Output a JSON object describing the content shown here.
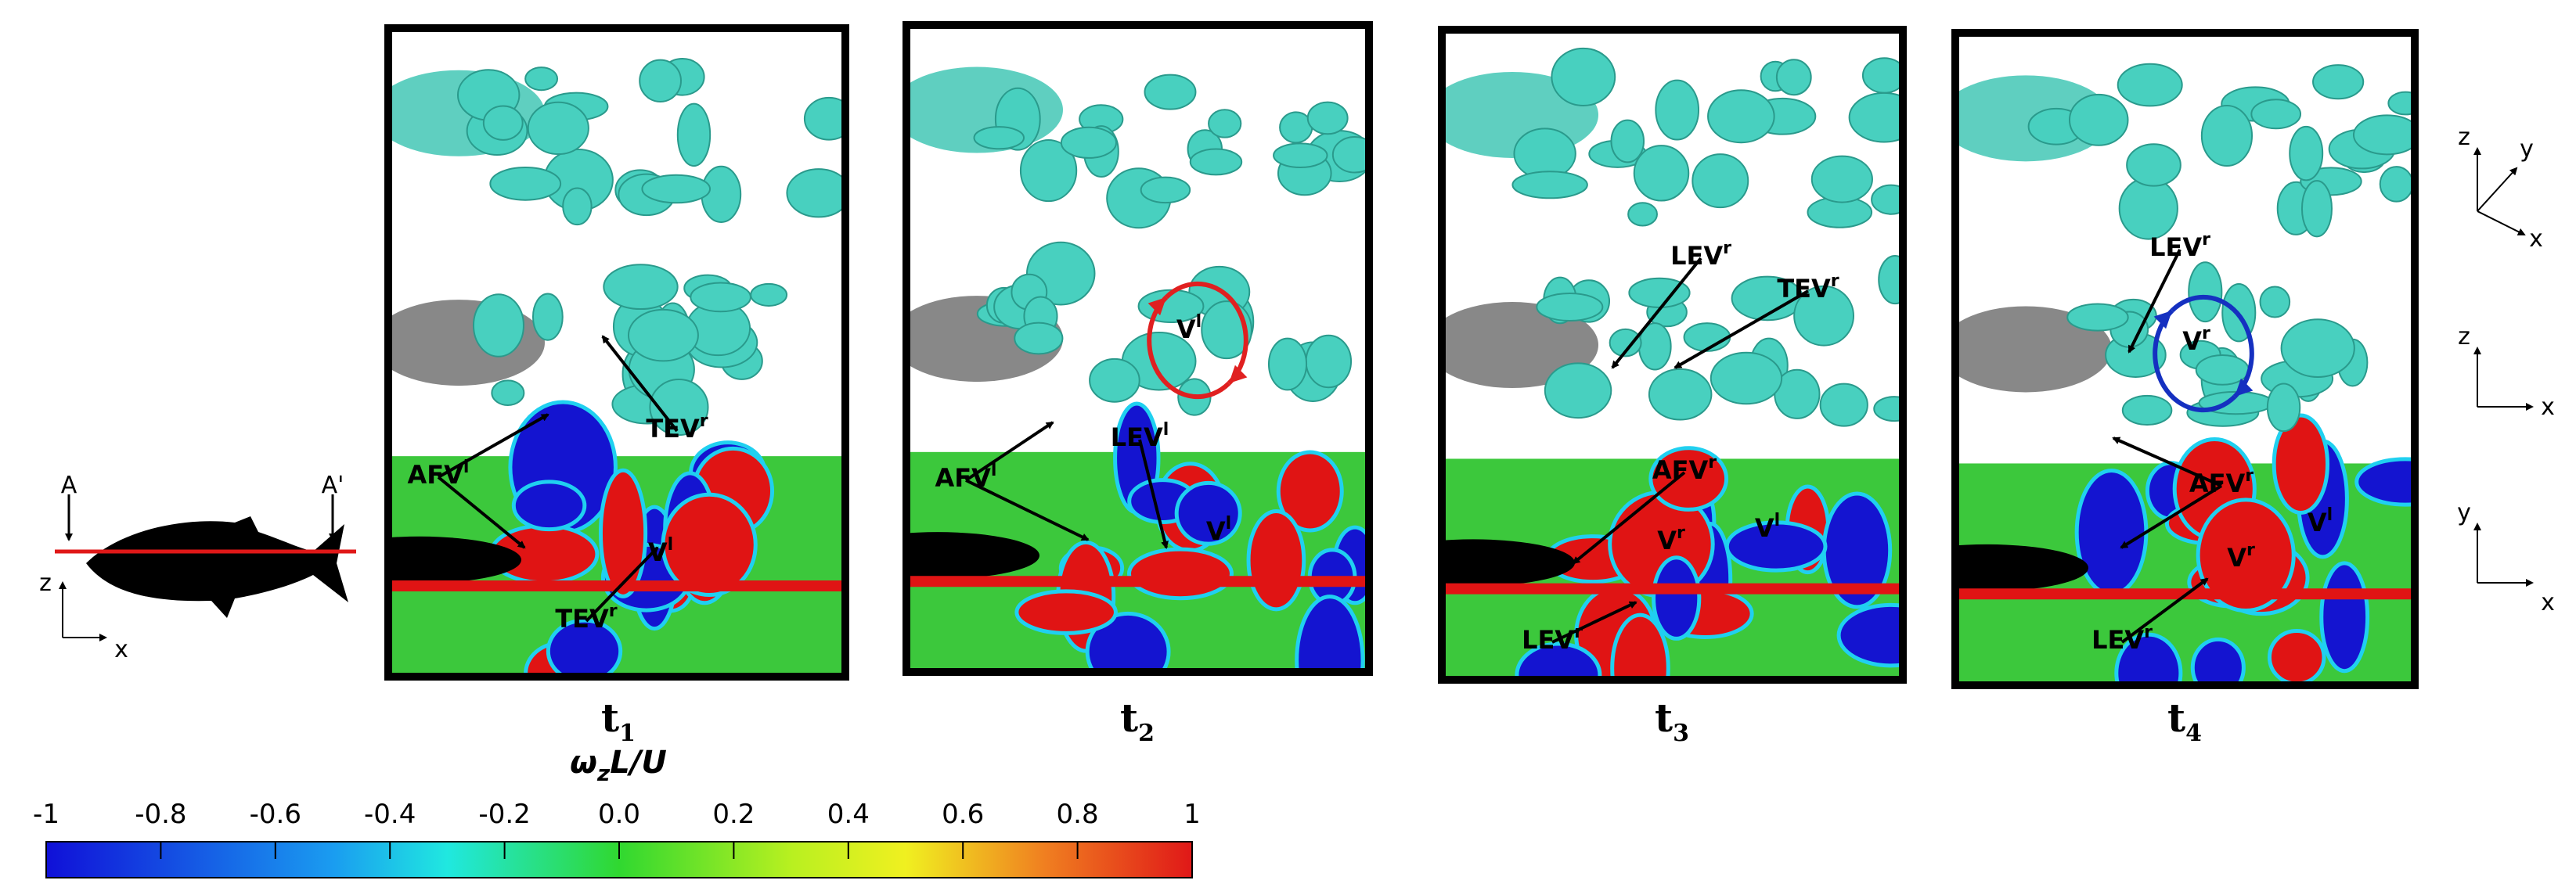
{
  "fish_section": {
    "A": "A",
    "A_prime": "A'",
    "axis_z": "z",
    "axis_x": "x"
  },
  "panels": [
    {
      "time": {
        "text": "t",
        "sub": "1"
      },
      "annotations": [
        {
          "text": "TEV",
          "sup": "r"
        },
        {
          "text": "AFV",
          "sup": "l"
        },
        {
          "text": "TEV",
          "sup": "r"
        },
        {
          "text": "V",
          "sup": "l"
        }
      ]
    },
    {
      "time": {
        "text": "t",
        "sub": "2"
      },
      "annotations": [
        {
          "text": "V",
          "sup": "l"
        },
        {
          "text": "AFV",
          "sup": "l"
        },
        {
          "text": "LEV",
          "sup": "l"
        },
        {
          "text": "V",
          "sup": "l"
        }
      ]
    },
    {
      "time": {
        "text": "t",
        "sub": "3"
      },
      "annotations": [
        {
          "text": "LEV",
          "sup": "r"
        },
        {
          "text": "TEV",
          "sup": "r"
        },
        {
          "text": "AFV",
          "sup": "r"
        },
        {
          "text": "V",
          "sup": "r"
        },
        {
          "text": "V",
          "sup": "l"
        },
        {
          "text": "LEV",
          "sup": "r"
        }
      ]
    },
    {
      "time": {
        "text": "t",
        "sub": "4"
      },
      "annotations": [
        {
          "text": "LEV",
          "sup": "r"
        },
        {
          "text": "V",
          "sup": "r"
        },
        {
          "text": "AFV",
          "sup": "r"
        },
        {
          "text": "V",
          "sup": "l"
        },
        {
          "text": "V",
          "sup": "r"
        },
        {
          "text": "LEV",
          "sup": "r"
        }
      ]
    }
  ],
  "colorbar": {
    "title": {
      "base": "ω",
      "sub": "z",
      "tail": "L/U"
    },
    "lim": [
      -1,
      1
    ],
    "ticks": [
      -1,
      -0.8,
      -0.6,
      -0.4,
      -0.2,
      {
        "value": 0,
        "label": "0.0"
      },
      0.2,
      0.4,
      0.6,
      0.8,
      1
    ]
  },
  "axes_triads": [
    {
      "labels": [
        "z",
        "y",
        "x"
      ]
    },
    {
      "labels": [
        "z",
        "x"
      ]
    },
    {
      "labels": [
        "y",
        "x"
      ]
    }
  ]
}
